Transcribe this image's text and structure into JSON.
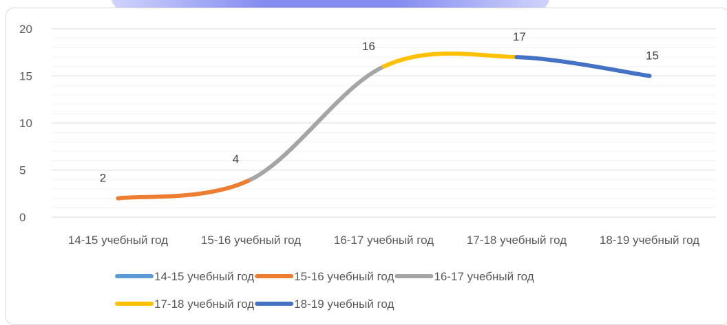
{
  "chart_data": {
    "type": "line",
    "categories": [
      "14-15 учебный год",
      "15-16 учебный год",
      "16-17 учебный год",
      "17-18 учебный год",
      "18-19 учебный год"
    ],
    "values": [
      2,
      4,
      16,
      17,
      15
    ],
    "data_labels": [
      "2",
      "4",
      "16",
      "17",
      "15"
    ],
    "ylim": [
      0,
      20
    ],
    "y_ticks": [
      "0",
      "5",
      "10",
      "15",
      "20"
    ],
    "grid": true,
    "smooth": true,
    "legend_position": "bottom",
    "series": [
      {
        "name": "14-15 учебный год",
        "color": "#5b9bd5"
      },
      {
        "name": "15-16 учебный год",
        "color": "#ed7d31"
      },
      {
        "name": "16-17 учебный год",
        "color": "#a5a5a5"
      },
      {
        "name": "17-18 учебный год",
        "color": "#ffc000"
      },
      {
        "name": "18-19 учебный год",
        "color": "#4472c4"
      }
    ],
    "segment_colors": [
      "#ed7d31",
      "#a5a5a5",
      "#ffc000",
      "#4472c4"
    ],
    "gridline_color": "#d9d9d9"
  }
}
